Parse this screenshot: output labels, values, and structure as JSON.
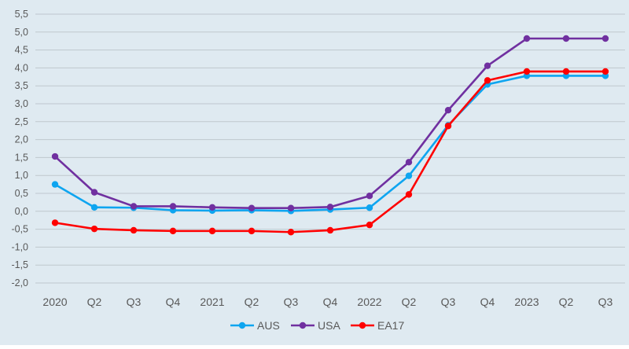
{
  "chart_data": {
    "type": "line",
    "categories": [
      "2020",
      "Q2",
      "Q3",
      "Q4",
      "2021",
      "Q2",
      "Q3",
      "Q4",
      "2022",
      "Q2",
      "Q3",
      "Q4",
      "2023",
      "Q2",
      "Q3"
    ],
    "series": [
      {
        "name": "AUS",
        "color": "#0ea5f0",
        "values": [
          0.75,
          0.11,
          0.1,
          0.03,
          0.02,
          0.03,
          0.01,
          0.05,
          0.1,
          0.99,
          2.4,
          3.54,
          3.78,
          3.78,
          3.78
        ]
      },
      {
        "name": "USA",
        "color": "#7030a0",
        "values": [
          1.53,
          0.53,
          0.14,
          0.14,
          0.11,
          0.09,
          0.09,
          0.12,
          0.43,
          1.37,
          2.82,
          4.06,
          4.82,
          4.82,
          4.82
        ]
      },
      {
        "name": "EA17",
        "color": "#ff0000",
        "values": [
          -0.32,
          -0.49,
          -0.53,
          -0.55,
          -0.55,
          -0.55,
          -0.58,
          -0.53,
          -0.38,
          0.47,
          2.38,
          3.65,
          3.9,
          3.9,
          3.9
        ]
      }
    ],
    "yticks": [
      "5,5",
      "5,0",
      "4,5",
      "4,0",
      "3,5",
      "3,0",
      "2,5",
      "2,0",
      "1,5",
      "1,0",
      "0,5",
      "0,0",
      "-0,5",
      "-1,0",
      "-1,5",
      "-2,0"
    ],
    "ylim": [
      -2.0,
      5.5
    ],
    "grid": true,
    "legend_position": "bottom-center",
    "background_color": "#dfeaf1",
    "grid_color": "#bfc7ce",
    "text_color": "#595959"
  }
}
